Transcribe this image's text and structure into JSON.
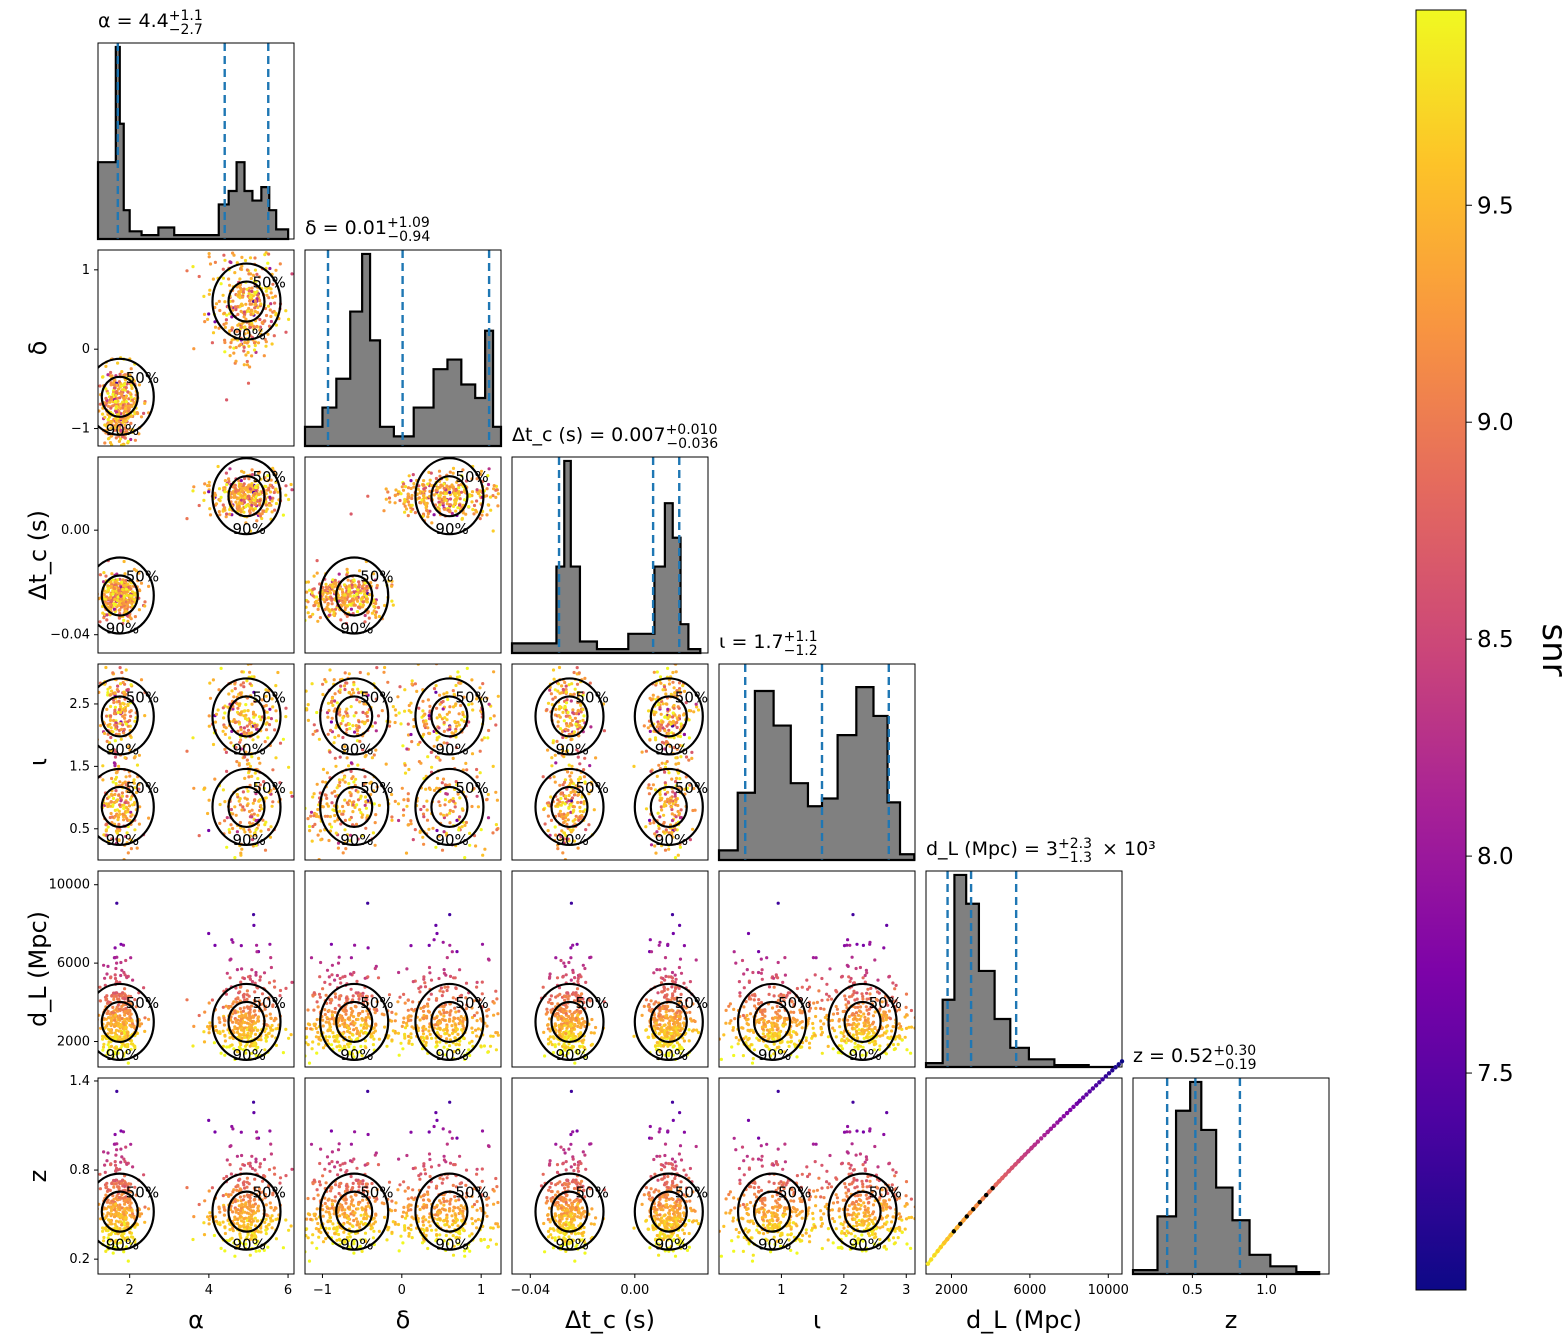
{
  "colors": {
    "hist_fill": "#808080",
    "hist_edge": "#000000",
    "quantile_line": "#1f77b4",
    "contour": "#000000",
    "colormap": "plasma"
  },
  "colorbar": {
    "label": "snr",
    "ticks": [
      "7.5",
      "8.0",
      "8.5",
      "9.0",
      "9.5"
    ],
    "range": [
      7.0,
      9.95
    ]
  },
  "contour_labels": [
    "50%",
    "90%"
  ],
  "chart_data": {
    "type": "corner",
    "parameters": [
      {
        "key": "alpha",
        "label": "α",
        "range": [
          1.2,
          6.15
        ],
        "ticks": [
          2,
          4,
          6
        ],
        "tick_labels": [
          "2",
          "4",
          "6"
        ],
        "title": "α = 4.4 +1.1 −2.7",
        "title_parts": [
          "α = 4.4",
          "+1.1",
          "−2.7"
        ],
        "quantiles": [
          1.7,
          4.4,
          5.5
        ]
      },
      {
        "key": "delta",
        "label": "δ",
        "range": [
          -1.22,
          1.25
        ],
        "ticks": [
          -1,
          0,
          1
        ],
        "tick_labels": [
          "−1",
          "0",
          "1"
        ],
        "title": "δ = 0.01 +1.09 −0.94",
        "title_parts": [
          "δ = 0.01",
          "+1.09",
          "−0.94"
        ],
        "quantiles": [
          -0.93,
          0.01,
          1.1
        ]
      },
      {
        "key": "dtc",
        "label": "Δt_c (s)",
        "range": [
          -0.047,
          0.028
        ],
        "ticks": [
          -0.04,
          0.0
        ],
        "tick_labels": [
          "−0.04",
          "0.00"
        ],
        "title": "Δt_c (s) = 0.007 +0.010 −0.036",
        "title_parts": [
          "Δt_c (s) = 0.007",
          "+0.010",
          "−0.036"
        ],
        "quantiles": [
          -0.029,
          0.007,
          0.017
        ]
      },
      {
        "key": "iota",
        "label": "ι",
        "range": [
          0.0,
          3.14
        ],
        "ticks": [
          0.5,
          1.5,
          2.5
        ],
        "tick_labels": [
          "0.5",
          "1.5",
          "2.5"
        ],
        "bottom_tick_labels": [
          "1",
          "2",
          "3"
        ],
        "bottom_ticks": [
          1,
          2,
          3
        ],
        "title": "ι = 1.7 +1.1 −1.2",
        "title_parts": [
          "ι = 1.7",
          "+1.1",
          "−1.2"
        ],
        "quantiles": [
          0.42,
          1.65,
          2.72
        ]
      },
      {
        "key": "dl",
        "label": "d_L (Mpc)",
        "range": [
          700,
          10700
        ],
        "ticks": [
          2000,
          6000,
          10000
        ],
        "tick_labels": [
          "2000",
          "6000",
          "10000"
        ],
        "title": "d_L (Mpc) = 3 +2.3 −1.3 × 10³",
        "title_parts": [
          "d_L (Mpc) = 3",
          "+2.3",
          "−1.3",
          "× 10³"
        ],
        "quantiles": [
          1800,
          3000,
          5300
        ]
      },
      {
        "key": "z",
        "label": "z",
        "range": [
          0.1,
          1.42
        ],
        "ticks": [
          0.2,
          0.8,
          1.4
        ],
        "tick_labels": [
          "0.2",
          "0.8",
          "1.4"
        ],
        "bottom_ticks": [
          0.5,
          1.0
        ],
        "bottom_tick_labels": [
          "0.5",
          "1.0"
        ],
        "title": "z = 0.52 +0.30 −0.19",
        "title_parts": [
          "z = 0.52",
          "+0.30",
          "−0.19"
        ],
        "quantiles": [
          0.33,
          0.52,
          0.82
        ]
      }
    ],
    "histograms": {
      "alpha": [
        [
          1.6,
          0.4
        ],
        [
          1.7,
          1.0
        ],
        [
          1.8,
          0.6
        ],
        [
          1.9,
          0.15
        ],
        [
          2.1,
          0.04
        ],
        [
          2.5,
          0.02
        ],
        [
          2.95,
          0.06
        ],
        [
          3.3,
          0.02
        ],
        [
          4.1,
          0.02
        ],
        [
          4.4,
          0.18
        ],
        [
          4.6,
          0.25
        ],
        [
          4.8,
          0.4
        ],
        [
          5.0,
          0.25
        ],
        [
          5.2,
          0.2
        ],
        [
          5.45,
          0.27
        ],
        [
          5.6,
          0.15
        ],
        [
          5.8,
          0.05
        ]
      ],
      "delta": [
        [
          -1.1,
          0.1
        ],
        [
          -0.9,
          0.2
        ],
        [
          -0.75,
          0.35
        ],
        [
          -0.55,
          0.7
        ],
        [
          -0.45,
          1.0
        ],
        [
          -0.35,
          0.55
        ],
        [
          -0.2,
          0.1
        ],
        [
          0.0,
          0.05
        ],
        [
          0.3,
          0.2
        ],
        [
          0.5,
          0.4
        ],
        [
          0.65,
          0.45
        ],
        [
          0.85,
          0.32
        ],
        [
          1.0,
          0.25
        ],
        [
          1.1,
          0.6
        ],
        [
          1.2,
          0.1
        ]
      ],
      "dtc": [
        [
          -0.032,
          0.05
        ],
        [
          -0.028,
          0.45
        ],
        [
          -0.026,
          1.0
        ],
        [
          -0.023,
          0.45
        ],
        [
          -0.019,
          0.06
        ],
        [
          -0.01,
          0.02
        ],
        [
          0.005,
          0.1
        ],
        [
          0.01,
          0.45
        ],
        [
          0.013,
          0.78
        ],
        [
          0.016,
          0.6
        ],
        [
          0.019,
          0.15
        ],
        [
          0.022,
          0.02
        ]
      ],
      "iota": [
        [
          0.2,
          0.05
        ],
        [
          0.4,
          0.35
        ],
        [
          0.75,
          0.88
        ],
        [
          1.0,
          0.7
        ],
        [
          1.3,
          0.4
        ],
        [
          1.55,
          0.28
        ],
        [
          1.75,
          0.32
        ],
        [
          2.05,
          0.65
        ],
        [
          2.35,
          0.9
        ],
        [
          2.6,
          0.75
        ],
        [
          2.8,
          0.3
        ],
        [
          3.0,
          0.03
        ]
      ],
      "dl": [
        [
          1300,
          0.02
        ],
        [
          1800,
          0.35
        ],
        [
          2500,
          1.0
        ],
        [
          3000,
          0.85
        ],
        [
          3800,
          0.5
        ],
        [
          4600,
          0.25
        ],
        [
          5400,
          0.1
        ],
        [
          6500,
          0.04
        ],
        [
          8000,
          0.01
        ],
        [
          10000,
          0.0
        ]
      ],
      "z": [
        [
          0.2,
          0.02
        ],
        [
          0.33,
          0.3
        ],
        [
          0.45,
          0.85
        ],
        [
          0.52,
          1.0
        ],
        [
          0.6,
          0.75
        ],
        [
          0.72,
          0.45
        ],
        [
          0.82,
          0.28
        ],
        [
          0.95,
          0.1
        ],
        [
          1.1,
          0.04
        ],
        [
          1.3,
          0.01
        ]
      ]
    },
    "bimodal_clusters": {
      "alpha": [
        1.75,
        4.95
      ],
      "delta": [
        -0.6,
        0.6
      ],
      "dtc": [
        -0.025,
        0.013
      ],
      "iota": [
        0.85,
        2.3
      ],
      "dl": [
        3000,
        3000
      ],
      "z": [
        0.52,
        0.52
      ]
    }
  }
}
